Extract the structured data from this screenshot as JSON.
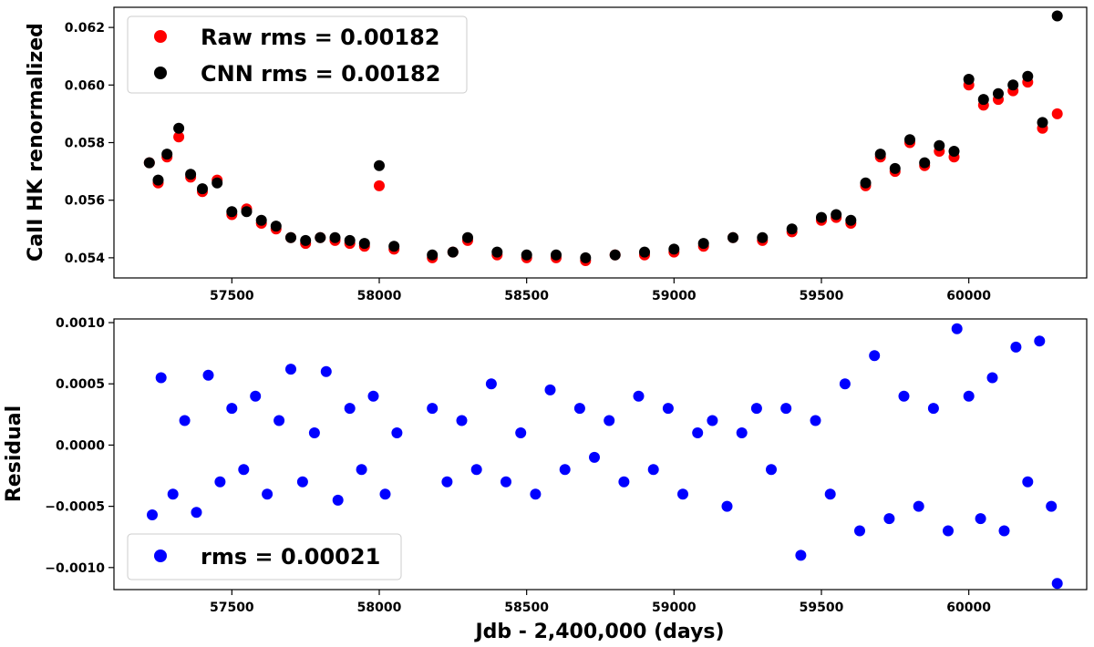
{
  "chart_data": [
    {
      "type": "scatter",
      "ylabel": "CaII HK renormalized",
      "xlabel": "",
      "xlim": [
        57100,
        60400
      ],
      "ylim": [
        0.0533,
        0.0627
      ],
      "xticks": [
        57500,
        58000,
        58500,
        59000,
        59500,
        60000
      ],
      "xtick_labels": [
        "57500",
        "58000",
        "58500",
        "59000",
        "59500",
        "60000"
      ],
      "yticks": [
        0.054,
        0.056,
        0.058,
        0.06,
        0.062
      ],
      "ytick_labels": [
        "0.054",
        "0.056",
        "0.058",
        "0.060",
        "0.062"
      ],
      "legend": {
        "placement": "top-left",
        "entries": [
          "Raw rms = 0.00182",
          "CNN rms = 0.00182"
        ]
      },
      "series": [
        {
          "name": "Raw rms = 0.00182",
          "color": "#ff0000",
          "x": [
            57220,
            57250,
            57280,
            57320,
            57360,
            57400,
            57450,
            57500,
            57550,
            57600,
            57650,
            57700,
            57750,
            57800,
            57850,
            57900,
            57950,
            58000,
            58050,
            58180,
            58250,
            58300,
            58400,
            58500,
            58600,
            58700,
            58800,
            58900,
            59000,
            59100,
            59200,
            59300,
            59400,
            59500,
            59550,
            59600,
            59650,
            59700,
            59750,
            59800,
            59850,
            59900,
            59950,
            60000,
            60050,
            60100,
            60150,
            60200,
            60250,
            60300
          ],
          "y": [
            0.0573,
            0.0566,
            0.0575,
            0.0582,
            0.0568,
            0.0563,
            0.0567,
            0.0555,
            0.0557,
            0.0552,
            0.055,
            0.0547,
            0.0545,
            0.0547,
            0.0546,
            0.0545,
            0.0544,
            0.0565,
            0.0543,
            0.054,
            0.0542,
            0.0546,
            0.0541,
            0.054,
            0.054,
            0.0539,
            0.0541,
            0.0541,
            0.0542,
            0.0544,
            0.0547,
            0.0546,
            0.0549,
            0.0553,
            0.0554,
            0.0552,
            0.0565,
            0.0575,
            0.057,
            0.058,
            0.0572,
            0.0577,
            0.0575,
            0.06,
            0.0593,
            0.0595,
            0.0598,
            0.0601,
            0.0585,
            0.059
          ]
        },
        {
          "name": "CNN rms = 0.00182",
          "color": "#000000",
          "x": [
            57220,
            57250,
            57280,
            57320,
            57360,
            57400,
            57450,
            57500,
            57550,
            57600,
            57650,
            57700,
            57750,
            57800,
            57850,
            57900,
            57950,
            58000,
            58050,
            58180,
            58250,
            58300,
            58400,
            58500,
            58600,
            58700,
            58800,
            58900,
            59000,
            59100,
            59200,
            59300,
            59400,
            59500,
            59550,
            59600,
            59650,
            59700,
            59750,
            59800,
            59850,
            59900,
            59950,
            60000,
            60050,
            60100,
            60150,
            60200,
            60250,
            60300
          ],
          "y": [
            0.0573,
            0.0567,
            0.0576,
            0.0585,
            0.0569,
            0.0564,
            0.0566,
            0.0556,
            0.0556,
            0.0553,
            0.0551,
            0.0547,
            0.0546,
            0.0547,
            0.0547,
            0.0546,
            0.0545,
            0.0572,
            0.0544,
            0.0541,
            0.0542,
            0.0547,
            0.0542,
            0.0541,
            0.0541,
            0.054,
            0.0541,
            0.0542,
            0.0543,
            0.0545,
            0.0547,
            0.0547,
            0.055,
            0.0554,
            0.0555,
            0.0553,
            0.0566,
            0.0576,
            0.0571,
            0.0581,
            0.0573,
            0.0579,
            0.0577,
            0.0602,
            0.0595,
            0.0597,
            0.06,
            0.0603,
            0.0587,
            0.0624
          ]
        }
      ]
    },
    {
      "type": "scatter",
      "ylabel": "Residual",
      "xlabel": "Jdb - 2,400,000 (days)",
      "xlim": [
        57100,
        60400
      ],
      "ylim": [
        -0.00118,
        0.00103
      ],
      "xticks": [
        57500,
        58000,
        58500,
        59000,
        59500,
        60000
      ],
      "xtick_labels": [
        "57500",
        "58000",
        "58500",
        "59000",
        "59500",
        "60000"
      ],
      "yticks": [
        0.001,
        0.0005,
        0.0,
        -0.0005,
        -0.001
      ],
      "ytick_labels": [
        "0.0010",
        "0.0005",
        "0.0000",
        "−0.0005",
        "−0.0010"
      ],
      "legend": {
        "placement": "bottom-left",
        "entries": [
          "rms = 0.00021"
        ]
      },
      "series": [
        {
          "name": "rms = 0.00021",
          "color": "#0000ff",
          "x": [
            57230,
            57260,
            57300,
            57340,
            57380,
            57420,
            57460,
            57500,
            57540,
            57580,
            57620,
            57660,
            57700,
            57740,
            57780,
            57820,
            57860,
            57900,
            57940,
            57980,
            58020,
            58060,
            58180,
            58230,
            58280,
            58330,
            58380,
            58430,
            58480,
            58530,
            58580,
            58630,
            58680,
            58730,
            58780,
            58830,
            58880,
            58930,
            58980,
            59030,
            59080,
            59130,
            59180,
            59230,
            59280,
            59330,
            59380,
            59430,
            59480,
            59530,
            59580,
            59630,
            59680,
            59730,
            59780,
            59830,
            59880,
            59930,
            59960,
            60000,
            60040,
            60080,
            60120,
            60160,
            60200,
            60240,
            60280,
            60300
          ],
          "y": [
            -0.00057,
            0.00055,
            -0.0004,
            0.0002,
            -0.00055,
            0.00057,
            -0.0003,
            0.0003,
            -0.0002,
            0.0004,
            -0.0004,
            0.0002,
            0.00062,
            -0.0003,
            0.0001,
            0.0006,
            -0.00045,
            0.0003,
            -0.0002,
            0.0004,
            -0.0004,
            0.0001,
            0.0003,
            -0.0003,
            0.0002,
            -0.0002,
            0.0005,
            -0.0003,
            0.0001,
            -0.0004,
            0.00045,
            -0.0002,
            0.0003,
            -0.0001,
            0.0002,
            -0.0003,
            0.0004,
            -0.0002,
            0.0003,
            -0.0004,
            0.0001,
            0.0002,
            -0.0005,
            0.0001,
            0.0003,
            -0.0002,
            0.0003,
            -0.0009,
            0.0002,
            -0.0004,
            0.0005,
            -0.0007,
            0.00073,
            -0.0006,
            0.0004,
            -0.0005,
            0.0003,
            -0.0007,
            0.00095,
            0.0004,
            -0.0006,
            0.00055,
            -0.0007,
            0.0008,
            -0.0003,
            0.00085,
            -0.0005,
            -0.00113
          ]
        }
      ]
    }
  ]
}
